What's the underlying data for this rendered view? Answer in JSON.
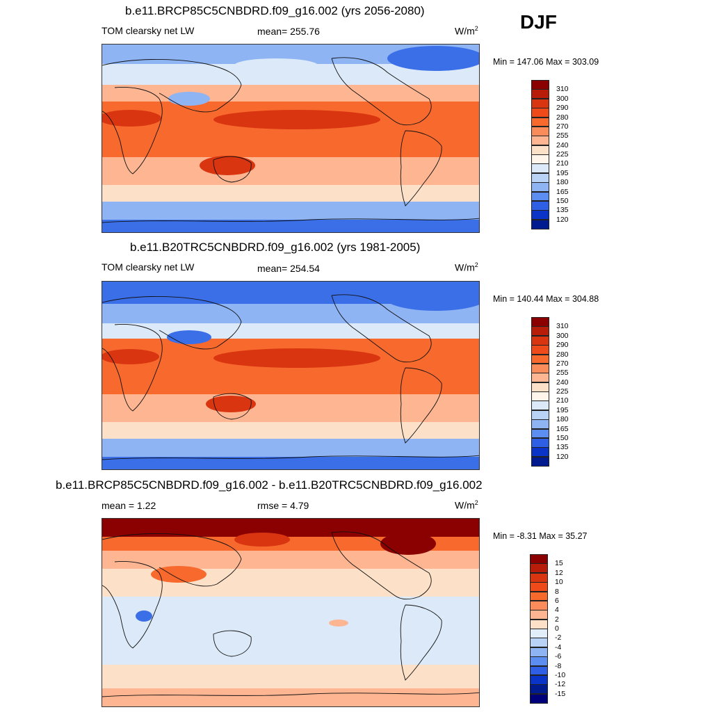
{
  "season": "DJF",
  "panels": [
    {
      "title": "b.e11.BRCP85C5CNBDRD.f09_g16.002 (yrs 2056-2080)",
      "left_label": "TOM clearsky net LW",
      "center_label": "mean= 255.76",
      "units": "W/m",
      "units_sup": "2",
      "minmax": "Min = 147.06 Max = 303.09"
    },
    {
      "title": "b.e11.B20TRC5CNBDRD.f09_g16.002 (yrs 1981-2005)",
      "left_label": "TOM clearsky net LW",
      "center_label": "mean= 254.54",
      "units": "W/m",
      "units_sup": "2",
      "minmax": "Min = 140.44 Max = 304.88"
    },
    {
      "title": "b.e11.BRCP85C5CNBDRD.f09_g16.002 - b.e11.B20TRC5CNBDRD.f09_g16.002",
      "left_label": "mean =   1.22",
      "center_label": "rmse =   4.79",
      "units": "W/m",
      "units_sup": "2",
      "minmax": "Min =  -8.31 Max =  35.27"
    }
  ],
  "colorbar_abs": {
    "labels": [
      "310",
      "300",
      "290",
      "280",
      "270",
      "255",
      "240",
      "225",
      "210",
      "195",
      "180",
      "165",
      "150",
      "135",
      "120"
    ],
    "colors": [
      "#8b0000",
      "#b81d0a",
      "#d93510",
      "#ee4a1a",
      "#f7692d",
      "#fa8c5c",
      "#fdb592",
      "#fde0c8",
      "#fff5ea",
      "#dbe9f8",
      "#b9d3f7",
      "#8eb4f4",
      "#5c8df0",
      "#2e5fe4",
      "#0a33c8",
      "#001a90"
    ]
  },
  "colorbar_diff": {
    "labels": [
      "15",
      "12",
      "10",
      "8",
      "6",
      "4",
      "2",
      "0",
      "-2",
      "-4",
      "-6",
      "-8",
      "-10",
      "-12",
      "-15"
    ],
    "colors": [
      "#8b0000",
      "#b81d0a",
      "#d93510",
      "#ee4a1a",
      "#f7692d",
      "#fa8c5c",
      "#fdb592",
      "#fde0c8",
      "#e3eefb",
      "#b9d3f7",
      "#8eb4f4",
      "#5c8df0",
      "#2e5fe4",
      "#0a33c8",
      "#001a90",
      "#00007a"
    ]
  },
  "map_colors": {
    "warm_dark": "#d93510",
    "warm": "#f7692d",
    "warm_light": "#fdb592",
    "neutral": "#fde0c8",
    "cool_light": "#dbe9f8",
    "cool": "#8eb4f4",
    "cool_dark": "#3b6fe8",
    "deep_red": "#8b0000",
    "diff_base": "#dbe9f8"
  }
}
